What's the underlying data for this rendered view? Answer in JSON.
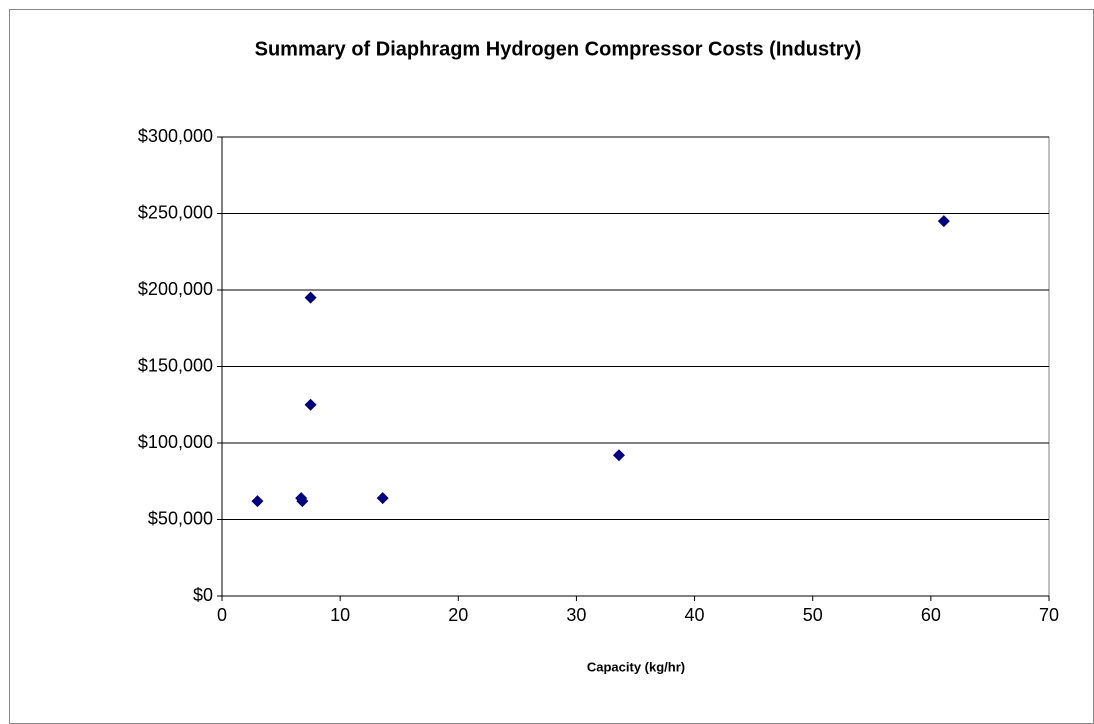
{
  "chart_data": {
    "type": "scatter",
    "title": "Summary of Diaphragm Hydrogen Compressor Costs (Industry)",
    "x_label": "Capacity (kg/hr)",
    "series": [
      {
        "color": "#000080",
        "x": [
          3,
          6.7,
          6.8,
          7.5,
          7.5,
          13.6,
          33.6,
          61.1
        ],
        "values": [
          62000,
          64000,
          62000,
          195000,
          125000,
          64000,
          92000,
          245000
        ]
      }
    ],
    "xlim": [
      0,
      70
    ],
    "xticks": [
      0,
      10,
      20,
      30,
      40,
      50,
      60,
      70
    ],
    "ylim": [
      0,
      300000
    ],
    "yticks": [
      {
        "value": 0,
        "label": "$0"
      },
      {
        "value": 50000,
        "label": "$50,000"
      },
      {
        "value": 100000,
        "label": "$100,000"
      },
      {
        "value": 150000,
        "label": "$150,000"
      },
      {
        "value": 200000,
        "label": "$200,000"
      },
      {
        "value": 250000,
        "label": "$250,000"
      },
      {
        "value": 300000,
        "label": "$300,000"
      }
    ],
    "grid": true
  }
}
